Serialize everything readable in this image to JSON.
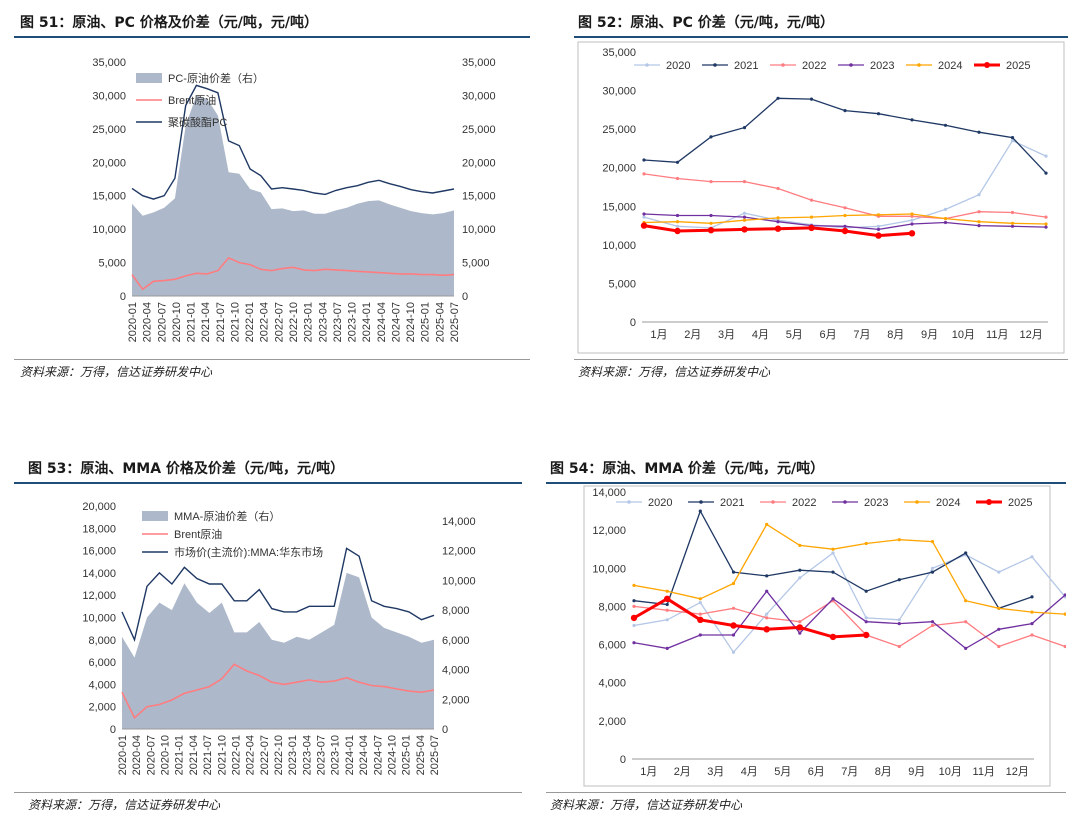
{
  "charts": [
    {
      "title": "图 51：原油、PC 价格及价差（元/吨，元/吨）",
      "source": "资料来源：万得，信达证券研发中心"
    },
    {
      "title": "图 52：原油、PC 价差（元/吨，元/吨）",
      "source": "资料来源：万得，信达证券研发中心"
    },
    {
      "title": "图 53：原油、MMA 价格及价差（元/吨，元/吨）",
      "source": "资料来源：万得，信达证券研发中心"
    },
    {
      "title": "图 54：原油、MMA 价差（元/吨，元/吨）",
      "source": "资料来源：万得，信达证券研发中心"
    }
  ],
  "chart_data": [
    {
      "type": "area",
      "x_ticks": [
        "2020-01",
        "2020-04",
        "2020-07",
        "2020-10",
        "2021-01",
        "2021-04",
        "2021-07",
        "2021-10",
        "2022-01",
        "2022-04",
        "2022-07",
        "2022-10",
        "2023-01",
        "2023-04",
        "2023-07",
        "2023-10",
        "2024-01",
        "2024-04",
        "2024-07",
        "2024-10",
        "2025-01",
        "2025-04",
        "2025-07"
      ],
      "ylim_left": [
        0,
        35000
      ],
      "y_ticks_left": [
        "0",
        "5,000",
        "10,000",
        "15,000",
        "20,000",
        "25,000",
        "30,000",
        "35,000"
      ],
      "ylim_right": [
        0,
        35000
      ],
      "y_ticks_right": [
        "0",
        "5,000",
        "10,000",
        "15,000",
        "20,000",
        "25,000",
        "30,000",
        "35,000"
      ],
      "legend": [
        "PC-原油价差（右）",
        "Brent原油",
        "聚碳酸酯PC"
      ],
      "colors": [
        "#adb9ca",
        "#ff7c80",
        "#1f3864"
      ],
      "series": [
        {
          "name": "PC-原油价差（右）",
          "axis": "right",
          "values": [
            13800,
            12000,
            12500,
            13200,
            14600,
            25500,
            30000,
            29500,
            27000,
            18500,
            18300,
            16000,
            15500,
            13000,
            13100,
            12700,
            12800,
            12300,
            12300,
            12800,
            13200,
            13800,
            14200,
            14300,
            13700,
            13200,
            12700,
            12400,
            12200,
            12400,
            12800
          ]
        },
        {
          "name": "Brent原油",
          "axis": "left",
          "values": [
            3200,
            1000,
            2200,
            2300,
            2500,
            3000,
            3400,
            3300,
            3800,
            5700,
            5000,
            4700,
            4000,
            3800,
            4100,
            4300,
            3900,
            3800,
            4000,
            3900,
            3800,
            3700,
            3600,
            3500,
            3400,
            3300,
            3300,
            3200,
            3200,
            3100,
            3200
          ]
        },
        {
          "name": "聚碳酸酯PC",
          "axis": "left",
          "values": [
            16100,
            15000,
            14500,
            15000,
            17600,
            28500,
            31500,
            31000,
            30400,
            23200,
            22500,
            19000,
            18000,
            16000,
            16200,
            16000,
            15800,
            15400,
            15200,
            15800,
            16200,
            16500,
            17000,
            17300,
            16800,
            16400,
            15900,
            15600,
            15400,
            15700,
            16000
          ]
        }
      ]
    },
    {
      "type": "line",
      "x_ticks": [
        "1月",
        "2月",
        "3月",
        "4月",
        "5月",
        "6月",
        "7月",
        "8月",
        "9月",
        "10月",
        "11月",
        "12月"
      ],
      "ylim": [
        0,
        35000
      ],
      "y_ticks": [
        "0",
        "5,000",
        "10,000",
        "15,000",
        "20,000",
        "25,000",
        "30,000",
        "35,000"
      ],
      "series": [
        {
          "name": "2020",
          "color": "#b4c7e7",
          "values": [
            13600,
            12400,
            12200,
            14100,
            13200,
            12600,
            12200,
            12400,
            13200,
            14600,
            16500,
            23500,
            21500
          ]
        },
        {
          "name": "2021",
          "color": "#1f3864",
          "values": [
            21000,
            20700,
            24000,
            25200,
            29000,
            28900,
            27400,
            27000,
            26200,
            25500,
            24600,
            23900,
            19300
          ]
        },
        {
          "name": "2022",
          "color": "#ff7c80",
          "values": [
            19200,
            18600,
            18200,
            18200,
            17300,
            15800,
            14800,
            13700,
            13700,
            13400,
            14300,
            14200,
            13600
          ]
        },
        {
          "name": "2023",
          "color": "#7030a0",
          "values": [
            14000,
            13800,
            13800,
            13600,
            13000,
            12500,
            12400,
            12000,
            12700,
            12900,
            12500,
            12400,
            12300
          ]
        },
        {
          "name": "2024",
          "color": "#ffa500",
          "values": [
            12900,
            13000,
            12800,
            13200,
            13500,
            13600,
            13800,
            13900,
            14000,
            13400,
            13000,
            12800,
            12700
          ]
        },
        {
          "name": "2025",
          "color": "#ff0000",
          "values": [
            12500,
            11800,
            11900,
            12000,
            12100,
            12200,
            11800,
            11200,
            11500
          ]
        }
      ]
    },
    {
      "type": "area",
      "x_ticks": [
        "2020-01",
        "2020-04",
        "2020-07",
        "2020-10",
        "2021-01",
        "2021-04",
        "2021-07",
        "2021-10",
        "2022-01",
        "2022-04",
        "2022-07",
        "2022-10",
        "2023-01",
        "2023-04",
        "2023-07",
        "2023-10",
        "2024-01",
        "2024-04",
        "2024-07",
        "2024-10",
        "2025-01",
        "2025-04",
        "2025-07"
      ],
      "ylim_left": [
        0,
        20000
      ],
      "y_ticks_left": [
        "0",
        "2,000",
        "4,000",
        "6,000",
        "8,000",
        "10,000",
        "12,000",
        "14,000",
        "16,000",
        "18,000",
        "20,000"
      ],
      "ylim_right": [
        0,
        15000
      ],
      "y_ticks_right": [
        "0",
        "2,000",
        "4,000",
        "6,000",
        "8,000",
        "10,000",
        "12,000",
        "14,000"
      ],
      "legend": [
        "MMA-原油价差（右）",
        "Brent原油",
        "市场价(主流价):MMA:华东市场"
      ],
      "colors": [
        "#adb9ca",
        "#ff7c80",
        "#1f3864"
      ],
      "series": [
        {
          "name": "MMA-原油价差（右）",
          "axis": "right",
          "values": [
            6200,
            4800,
            7500,
            8500,
            8000,
            9800,
            8500,
            7800,
            8500,
            6500,
            6500,
            7200,
            6000,
            5800,
            6200,
            6000,
            6500,
            7000,
            10500,
            10200,
            7500,
            6800,
            6500,
            6200,
            5800,
            6000
          ]
        },
        {
          "name": "Brent原油",
          "axis": "left",
          "values": [
            3300,
            1000,
            2000,
            2200,
            2600,
            3200,
            3500,
            3800,
            4500,
            5800,
            5200,
            4800,
            4200,
            4000,
            4200,
            4400,
            4200,
            4300,
            4600,
            4200,
            3900,
            3800,
            3600,
            3400,
            3300,
            3500
          ]
        },
        {
          "name": "市场价(主流价):MMA:华东市场",
          "axis": "left",
          "values": [
            10500,
            8000,
            12800,
            14000,
            13000,
            14500,
            13500,
            13000,
            13000,
            11500,
            11500,
            12500,
            10800,
            10500,
            10500,
            11000,
            11000,
            11000,
            16200,
            15500,
            11500,
            11000,
            10800,
            10500,
            9800,
            10200
          ]
        }
      ]
    },
    {
      "type": "line",
      "x_ticks": [
        "1月",
        "2月",
        "3月",
        "4月",
        "5月",
        "6月",
        "7月",
        "8月",
        "9月",
        "10月",
        "11月",
        "12月"
      ],
      "ylim": [
        0,
        14000
      ],
      "y_ticks": [
        "0",
        "2,000",
        "4,000",
        "6,000",
        "8,000",
        "10,000",
        "12,000",
        "14,000"
      ],
      "series": [
        {
          "name": "2020",
          "color": "#b4c7e7",
          "values": [
            7000,
            7300,
            8200,
            5600,
            7600,
            9500,
            10800,
            7400,
            7300,
            10000,
            10700,
            9800,
            10600,
            8500
          ]
        },
        {
          "name": "2021",
          "color": "#1f3864",
          "values": [
            8300,
            8100,
            13000,
            9800,
            9600,
            9900,
            9800,
            8800,
            9400,
            9800,
            10800,
            7900,
            8500
          ]
        },
        {
          "name": "2022",
          "color": "#ff7c80",
          "values": [
            8000,
            7800,
            7600,
            7900,
            7400,
            7200,
            8300,
            6500,
            5900,
            7000,
            7200,
            5900,
            6500,
            5900
          ]
        },
        {
          "name": "2023",
          "color": "#7030a0",
          "values": [
            6100,
            5800,
            6500,
            6500,
            8800,
            6600,
            8400,
            7200,
            7100,
            7200,
            5800,
            6800,
            7100,
            8600
          ]
        },
        {
          "name": "2024",
          "color": "#ffa500",
          "values": [
            9100,
            8800,
            8400,
            9200,
            12300,
            11200,
            11000,
            11300,
            11500,
            11400,
            8300,
            7900,
            7700,
            7600
          ]
        },
        {
          "name": "2025",
          "color": "#ff0000",
          "values": [
            7400,
            8400,
            7300,
            7000,
            6800,
            6900,
            6400,
            6500
          ]
        }
      ]
    }
  ]
}
